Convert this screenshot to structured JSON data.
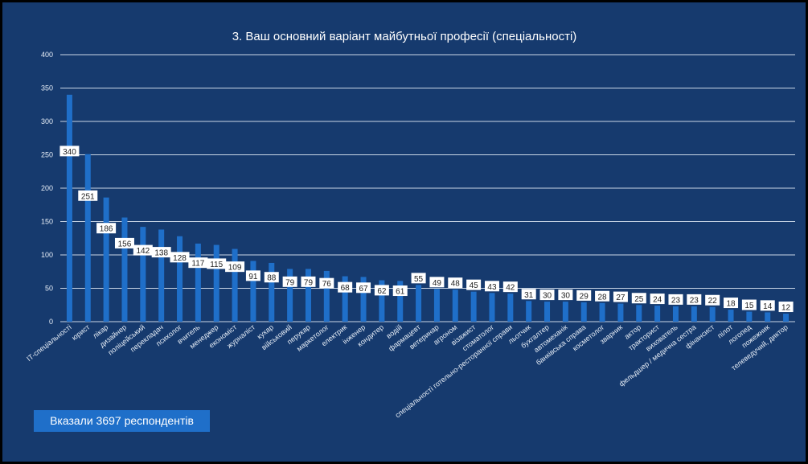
{
  "colors": {
    "background": "#163a6e",
    "frame": "#000000",
    "bar": "#1f6fc9",
    "gridline": "#c9d6e6",
    "axis_text": "#e6edf6",
    "label_box": "#ffffff",
    "label_text": "#222222",
    "footer_badge": "#1f6fc9"
  },
  "footer": {
    "text": "Вказали 3697 респондентів"
  },
  "chart_data": {
    "type": "bar",
    "title": "3. Ваш основний варіант майбутньої професії (спеціальності)",
    "xlabel": "",
    "ylabel": "",
    "ylim": [
      0,
      400
    ],
    "yticks": [
      0,
      50,
      100,
      150,
      200,
      250,
      300,
      350,
      400
    ],
    "grid": true,
    "legend": "none",
    "categories": [
      "IT-спеціальності",
      "юрист",
      "лікар",
      "дизайнер",
      "поліцейський",
      "перекладач",
      "психолог",
      "вчитель",
      "менеджер",
      "економіст",
      "журналіст",
      "кухар",
      "військовий",
      "перукар",
      "маркетолог",
      "електрик",
      "інженер",
      "кондитер",
      "водій",
      "фармацевт",
      "ветеринар",
      "агроном",
      "візажист",
      "стоматолог",
      "спеціальності готельно-ресторанної справи",
      "льотчик",
      "бухгалтер",
      "автомеханік",
      "банківська справа",
      "косметолог",
      "зварник",
      "актор",
      "тракторист",
      "вихователь",
      "фельдшер / медична сестра",
      "фінансист",
      "пілот",
      "логопед",
      "пожежник",
      "телеведучий, диктор"
    ],
    "values": [
      340,
      251,
      186,
      156,
      142,
      138,
      128,
      117,
      115,
      109,
      91,
      88,
      79,
      79,
      76,
      68,
      67,
      62,
      61,
      55,
      49,
      48,
      45,
      43,
      42,
      31,
      30,
      30,
      29,
      28,
      27,
      25,
      24,
      23,
      23,
      22,
      18,
      15,
      14,
      12
    ],
    "data_labels": [
      "340",
      "251",
      "186",
      "156",
      "142",
      "138",
      "128",
      "117",
      "115",
      "109",
      "91",
      "88",
      "79",
      "79",
      "76",
      "68",
      "67",
      "62",
      "61",
      "55",
      "49",
      "48",
      "45",
      "43",
      "42",
      "31",
      "30",
      "30",
      "29",
      "28",
      "27",
      "25",
      "24",
      "23",
      "23",
      "22",
      "18",
      "15",
      "14",
      "12"
    ]
  }
}
